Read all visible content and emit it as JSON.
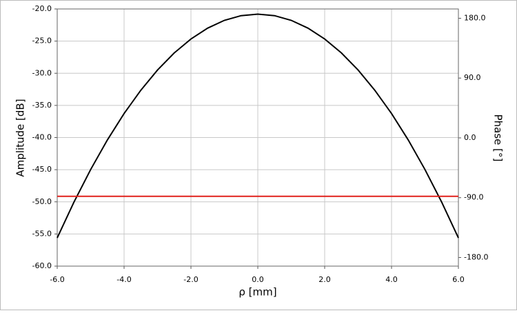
{
  "chart_data": {
    "type": "line",
    "x": [
      -6,
      -5.5,
      -5,
      -4.5,
      -4,
      -3.5,
      -3,
      -2.5,
      -2,
      -1.5,
      -1,
      -0.5,
      0,
      0.5,
      1,
      1.5,
      2,
      2.5,
      3,
      3.5,
      4,
      4.5,
      5,
      5.5,
      6
    ],
    "series": [
      {
        "name": "Amplitude",
        "color": "#000000",
        "values": [
          -55.61,
          -50.05,
          -44.98,
          -40.38,
          -36.27,
          -32.65,
          -29.5,
          -26.84,
          -24.67,
          -22.98,
          -21.77,
          -21.04,
          -20.8,
          -21.04,
          -21.77,
          -22.98,
          -24.67,
          -26.84,
          -29.5,
          -32.65,
          -36.27,
          -40.38,
          -44.98,
          -50.05,
          -55.61
        ]
      },
      {
        "name": "Phase",
        "color": "#e0201b",
        "axis": "y2",
        "values": [
          -88,
          -88,
          -88,
          -88,
          -88,
          -88,
          -88,
          -88,
          -88,
          -88,
          -88,
          -88,
          -88,
          -88,
          -88,
          -88,
          -88,
          -88,
          -88,
          -88,
          -88,
          -88,
          -88,
          -88,
          -88
        ]
      }
    ],
    "x_label": "ρ [mm]",
    "y_label": "Amplitude [dB]",
    "y2_label": "Phase [°]",
    "xlim": [
      -6,
      6
    ],
    "xticks": [
      {
        "value": -6,
        "label": "-6.0"
      },
      {
        "value": -4,
        "label": "-4.0"
      },
      {
        "value": -2,
        "label": "-2.0"
      },
      {
        "value": 0,
        "label": "0.0"
      },
      {
        "value": 2,
        "label": "2.0"
      },
      {
        "value": 4,
        "label": "4.0"
      },
      {
        "value": 6,
        "label": "6.0"
      }
    ],
    "ylim": [
      -60,
      -20
    ],
    "yticks": [
      {
        "value": -60,
        "label": "-60.0"
      },
      {
        "value": -55,
        "label": "-55.0"
      },
      {
        "value": -50,
        "label": "-50.0"
      },
      {
        "value": -45,
        "label": "-45.0"
      },
      {
        "value": -40,
        "label": "-40.0"
      },
      {
        "value": -35,
        "label": "-35.0"
      },
      {
        "value": -30,
        "label": "-30.0"
      },
      {
        "value": -25,
        "label": "-25.0"
      },
      {
        "value": -20,
        "label": "-20.0"
      }
    ],
    "y2lim": [
      -193,
      194
    ],
    "y2ticks": [
      {
        "value": -180,
        "label": "-180.0"
      },
      {
        "value": -90,
        "label": "-90.0"
      },
      {
        "value": 0,
        "label": "0.0"
      },
      {
        "value": 90,
        "label": "90.0"
      },
      {
        "value": 180,
        "label": "180.0"
      }
    ],
    "grid": true
  }
}
